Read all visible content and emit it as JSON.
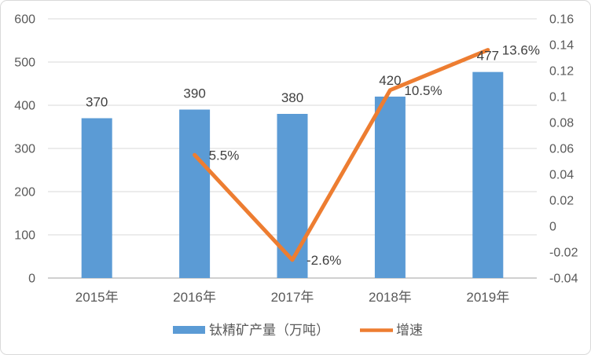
{
  "chart_data": {
    "type": "combo",
    "title": "",
    "categories": [
      "2015年",
      "2016年",
      "2017年",
      "2018年",
      "2019年"
    ],
    "series": [
      {
        "name": "钛精矿产量（万吨）",
        "type": "bar",
        "axis": "left",
        "color": "#5B9BD5",
        "values": [
          370,
          390,
          380,
          420,
          477
        ],
        "data_labels": [
          "370",
          "390",
          "380",
          "420",
          "477"
        ]
      },
      {
        "name": "增速",
        "type": "line",
        "axis": "right",
        "color": "#ED7D31",
        "values": [
          null,
          0.055,
          -0.026,
          0.105,
          0.136
        ],
        "data_labels": [
          null,
          "5.5%",
          "-2.6%",
          "10.5%",
          "13.6%"
        ]
      }
    ],
    "left_axis": {
      "min": 0,
      "max": 600,
      "tick_step": 100,
      "tick_labels": [
        "600",
        "500",
        "400",
        "300",
        "200",
        "100",
        "0"
      ]
    },
    "right_axis": {
      "min": -0.04,
      "max": 0.16,
      "tick_step": 0.02,
      "tick_labels": [
        "0.16",
        "0.14",
        "0.12",
        "0.1",
        "0.08",
        "0.06",
        "0.04",
        "0.02",
        "0",
        "-0.02",
        "-0.04"
      ]
    },
    "grid": true,
    "legend": {
      "position": "bottom",
      "entries": [
        {
          "label": "钛精矿产量（万吨）",
          "swatch": "bar",
          "color": "#5B9BD5"
        },
        {
          "label": "增速",
          "swatch": "line",
          "color": "#ED7D31"
        }
      ]
    }
  },
  "colors": {
    "bar": "#5B9BD5",
    "line": "#ED7D31",
    "grid": "#D9D9D9",
    "axis_line": "#B3B3B3",
    "axis_text": "#595959",
    "data_label_text": "#404040",
    "background": "#FFFFFF",
    "border": "#D9D9D9"
  }
}
